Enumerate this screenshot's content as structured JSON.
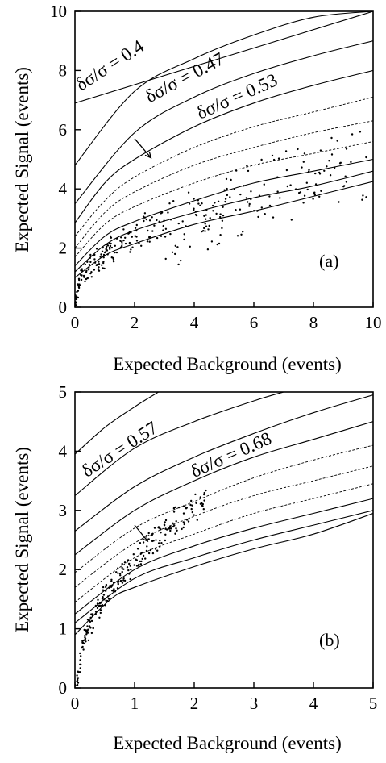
{
  "chart_data": [
    {
      "type": "scatter",
      "panel_label": "(a)",
      "xlabel": "Expected Background (events)",
      "ylabel": "Expected Signal (events)",
      "xlim": [
        0,
        10
      ],
      "ylim": [
        0,
        10
      ],
      "xticks": [
        "0",
        "2",
        "4",
        "6",
        "8",
        "10"
      ],
      "yticks": [
        "0",
        "2",
        "4",
        "6",
        "8",
        "10"
      ],
      "grid": false,
      "contour_curves": [
        {
          "style": "solid",
          "values": [
            [
              0,
              6.9
            ],
            [
              10,
              10
            ]
          ]
        },
        {
          "style": "solid",
          "values": [
            [
              0,
              4.8
            ],
            [
              2,
              7.3
            ],
            [
              4,
              8.4
            ],
            [
              6,
              9.2
            ],
            [
              8,
              9.8
            ],
            [
              10,
              10
            ]
          ]
        },
        {
          "style": "solid",
          "values": [
            [
              0,
              3.5
            ],
            [
              2,
              5.9
            ],
            [
              4,
              7.1
            ],
            [
              6,
              7.9
            ],
            [
              8,
              8.5
            ],
            [
              10,
              9.0
            ]
          ]
        },
        {
          "style": "solid",
          "values": [
            [
              0,
              2.85
            ],
            [
              1,
              4.2
            ],
            [
              2,
              5.0
            ],
            [
              4,
              6.1
            ],
            [
              6,
              6.9
            ],
            [
              8,
              7.5
            ],
            [
              10,
              8.0
            ]
          ]
        },
        {
          "style": "dotted",
          "values": [
            [
              0,
              2.4
            ],
            [
              1,
              3.6
            ],
            [
              2,
              4.4
            ],
            [
              4,
              5.4
            ],
            [
              6,
              6.1
            ],
            [
              8,
              6.6
            ],
            [
              10,
              7.1
            ]
          ]
        },
        {
          "style": "dotted",
          "values": [
            [
              0,
              2.0
            ],
            [
              1,
              3.2
            ],
            [
              2,
              3.9
            ],
            [
              4,
              4.8
            ],
            [
              6,
              5.4
            ],
            [
              8,
              5.9
            ],
            [
              10,
              6.3
            ]
          ]
        },
        {
          "style": "dotted",
          "values": [
            [
              0,
              1.7
            ],
            [
              1,
              2.8
            ],
            [
              2,
              3.4
            ],
            [
              4,
              4.2
            ],
            [
              6,
              4.8
            ],
            [
              8,
              5.2
            ],
            [
              10,
              5.6
            ]
          ]
        },
        {
          "style": "solid",
          "values": [
            [
              0,
              1.4
            ],
            [
              1,
              2.4
            ],
            [
              2,
              2.9
            ],
            [
              4,
              3.6
            ],
            [
              6,
              4.2
            ],
            [
              8,
              4.6
            ],
            [
              10,
              5.0
            ]
          ]
        },
        {
          "style": "solid",
          "values": [
            [
              0,
              1.2
            ],
            [
              1,
              2.1
            ],
            [
              2,
              2.6
            ],
            [
              4,
              3.2
            ],
            [
              6,
              3.7
            ],
            [
              8,
              4.1
            ],
            [
              10,
              4.6
            ]
          ]
        },
        {
          "style": "solid",
          "values": [
            [
              0,
              1.0
            ],
            [
              1,
              1.75
            ],
            [
              2,
              2.15
            ],
            [
              4,
              2.8
            ],
            [
              6,
              3.25
            ],
            [
              8,
              3.75
            ],
            [
              10,
              4.25
            ]
          ]
        }
      ],
      "annotations": [
        {
          "text": "δσ/σ = 0.4",
          "at": [
            0.2,
            7.3
          ],
          "rotation": -33
        },
        {
          "text": "δσ/σ = 0.47",
          "at": [
            2.5,
            6.9
          ],
          "rotation": -28
        },
        {
          "text": "δσ/σ = 0.53",
          "at": [
            4.2,
            6.35
          ],
          "rotation": -24
        }
      ],
      "arrow": {
        "from": [
          2.0,
          5.7
        ],
        "to": [
          2.55,
          5.05
        ]
      }
    },
    {
      "type": "scatter",
      "panel_label": "(b)",
      "xlabel": "Expected Background (events)",
      "ylabel": "Expected Signal (events)",
      "xlim": [
        0,
        5
      ],
      "ylim": [
        0,
        5
      ],
      "xticks": [
        "0",
        "1",
        "2",
        "3",
        "4",
        "5"
      ],
      "yticks": [
        "0",
        "1",
        "2",
        "3",
        "4",
        "5"
      ],
      "grid": false,
      "contour_curves": [
        {
          "style": "solid",
          "values": [
            [
              0,
              3.95
            ],
            [
              0.5,
              4.4
            ],
            [
              1,
              4.75
            ],
            [
              1.4,
              5.0
            ]
          ]
        },
        {
          "style": "solid",
          "values": [
            [
              0,
              3.25
            ],
            [
              1,
              4.05
            ],
            [
              2,
              4.5
            ],
            [
              3,
              4.85
            ],
            [
              3.5,
              5.0
            ]
          ]
        },
        {
          "style": "solid",
          "values": [
            [
              0,
              2.65
            ],
            [
              1,
              3.4
            ],
            [
              2,
              3.9
            ],
            [
              3,
              4.3
            ],
            [
              4,
              4.65
            ],
            [
              5,
              4.95
            ]
          ]
        },
        {
          "style": "solid",
          "values": [
            [
              0,
              2.25
            ],
            [
              1,
              3.0
            ],
            [
              2,
              3.5
            ],
            [
              3,
              3.9
            ],
            [
              4,
              4.2
            ],
            [
              5,
              4.5
            ]
          ]
        },
        {
          "style": "dotted",
          "values": [
            [
              0,
              1.95
            ],
            [
              1,
              2.7
            ],
            [
              2,
              3.15
            ],
            [
              3,
              3.55
            ],
            [
              4,
              3.85
            ],
            [
              5,
              4.1
            ]
          ]
        },
        {
          "style": "dotted",
          "values": [
            [
              0,
              1.7
            ],
            [
              1,
              2.45
            ],
            [
              2,
              2.9
            ],
            [
              3,
              3.25
            ],
            [
              4,
              3.5
            ],
            [
              5,
              3.75
            ]
          ]
        },
        {
          "style": "dotted",
          "values": [
            [
              0,
              1.45
            ],
            [
              1,
              2.2
            ],
            [
              2,
              2.6
            ],
            [
              3,
              2.95
            ],
            [
              4,
              3.2
            ],
            [
              5,
              3.45
            ]
          ]
        },
        {
          "style": "solid",
          "values": [
            [
              0,
              1.25
            ],
            [
              1,
              2.0
            ],
            [
              2,
              2.4
            ],
            [
              3,
              2.7
            ],
            [
              4,
              2.95
            ],
            [
              5,
              3.2
            ]
          ]
        },
        {
          "style": "solid",
          "values": [
            [
              0,
              1.1
            ],
            [
              1,
              1.85
            ],
            [
              2,
              2.2
            ],
            [
              3,
              2.5
            ],
            [
              4,
              2.75
            ],
            [
              5,
              3.0
            ]
          ]
        },
        {
          "style": "solid",
          "values": [
            [
              0,
              0.9
            ],
            [
              0.6,
              1.5
            ],
            [
              1,
              1.7
            ],
            [
              2,
              2.05
            ],
            [
              3,
              2.35
            ],
            [
              4,
              2.6
            ],
            [
              5,
              2.95
            ]
          ]
        }
      ],
      "annotations": [
        {
          "text": "δσ/σ = 0.57",
          "at": [
            0.2,
            3.55
          ],
          "rotation": -33
        },
        {
          "text": "δσ/σ = 0.68",
          "at": [
            2.0,
            3.55
          ],
          "rotation": -24
        }
      ],
      "arrow": {
        "from": [
          1.0,
          2.75
        ],
        "to": [
          1.22,
          2.48
        ]
      }
    }
  ]
}
